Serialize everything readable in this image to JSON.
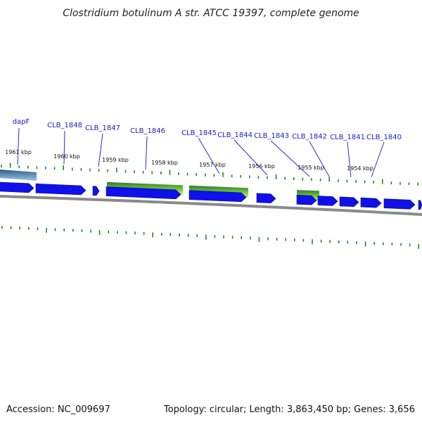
{
  "title": "Clostridium botulinum A str. ATCC 19397, complete genome",
  "footer": {
    "accession": "Accession: NC_009697",
    "summary": "Topology: circular; Length: 3,863,450 bp; Genes: 3,656"
  },
  "colors": {
    "gene": "#1010e8",
    "tick": "#1e8a1e",
    "backbone": "#8a8a8a",
    "label": "#1a1acc",
    "label_line": "#2b2bd0",
    "feature_top": "#2f7a2f",
    "feature_bottom": "#c8f07a",
    "feature_gray": "#4a7fae"
  },
  "scale_labels": [
    "1961 kbp",
    "1960 kbp",
    "1959 kbp",
    "1958 kbp",
    "1957 kbp",
    "1956 kbp",
    "1955 kbp",
    "1954 kbp"
  ],
  "genes": [
    {
      "label": "dapF"
    },
    {
      "label": "CLB_1848"
    },
    {
      "label": "CLB_1847"
    },
    {
      "label": "CLB_1846"
    },
    {
      "label": "CLB_1845"
    },
    {
      "label": "CLB_1844"
    },
    {
      "label": "CLB_1843"
    },
    {
      "label": "CLB_1842"
    },
    {
      "label": "CLB_1841"
    },
    {
      "label": "CLB_1840"
    }
  ]
}
